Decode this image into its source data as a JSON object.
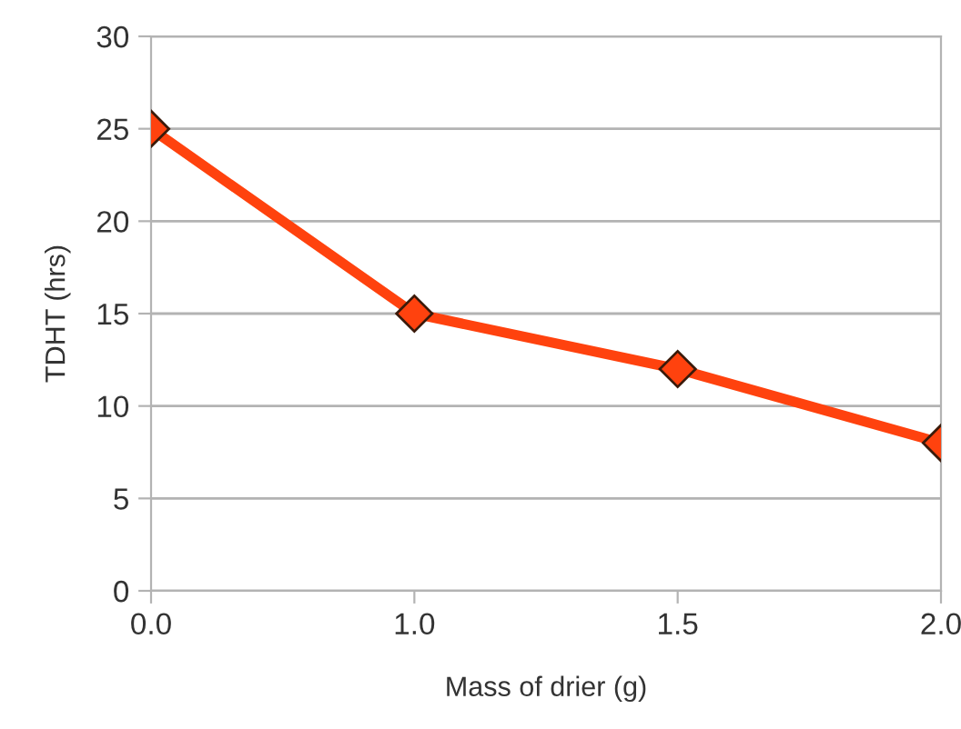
{
  "chart_data": {
    "type": "line",
    "xlabel": "Mass of drier (g)",
    "ylabel": "TDHT (hrs)",
    "categories": [
      "0.0",
      "1.0",
      "1.5",
      "2.0"
    ],
    "series": [
      {
        "color": "#ff420e",
        "values": [
          25,
          15,
          12,
          8
        ]
      }
    ],
    "ylim": [
      0,
      30
    ],
    "yticks": [
      0,
      5,
      10,
      15,
      20,
      25,
      30
    ],
    "grid": "y",
    "marker": "diamond",
    "line_style": "solid",
    "legend": false
  }
}
